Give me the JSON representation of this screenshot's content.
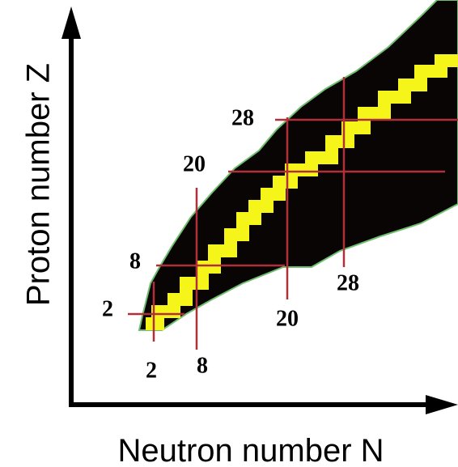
{
  "axes": {
    "y_label": "Proton number Z",
    "x_label": "Neutron number N"
  },
  "proton_magic_numbers": [
    "2",
    "8",
    "20",
    "28"
  ],
  "neutron_magic_numbers": [
    "2",
    "8",
    "20",
    "28"
  ]
}
